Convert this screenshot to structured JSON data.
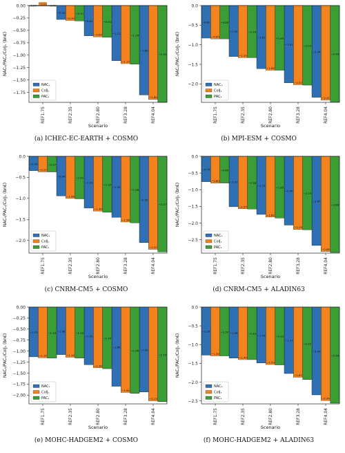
{
  "colors": {
    "nac": "#2f6fb3",
    "col": "#f2831e",
    "pac": "#3a9d35"
  },
  "chart_data": [
    {
      "type": "bar",
      "caption": "(a) ICHEC-EC-EARTH + COSMO",
      "categories": [
        "REF1.75",
        "REF2.35",
        "REF2.80",
        "REF3.28",
        "REF4.04"
      ],
      "xlabel": "Scenario",
      "ylabel": "NACₛ/PACₛ/CoIJₛ (bn€)",
      "ylim": [
        -1.95,
        0.0
      ],
      "yticks": [
        0.0,
        -0.25,
        -0.5,
        -0.75,
        -1.0,
        -1.25,
        -1.5,
        -1.75
      ],
      "ytick_labels": [
        "0.00",
        "−0.25",
        "−0.50",
        "−0.75",
        "−1.00",
        "−1.25",
        "−1.50",
        "−1.75"
      ],
      "legend": "bottom-left",
      "legend_labels": [
        "NACₛ",
        "CoIJₛ",
        "PACₛ"
      ],
      "series": [
        {
          "key": "nac",
          "values": [
            -0.0,
            -0.28,
            -0.61,
            -1.11,
            -1.8
          ],
          "labels": [
            "0.00",
            "−0.28",
            "−0.61",
            "−1.11",
            "−1.80"
          ]
        },
        {
          "key": "col",
          "values": [
            -0.01,
            -0.3,
            -0.63,
            -1.17,
            -1.89
          ],
          "labels": [
            "−0.01",
            "−0.30",
            "−0.63",
            "−1.17",
            "−1.89"
          ]
        },
        {
          "key": "pac",
          "values": [
            -0.01,
            -0.31,
            -0.64,
            -1.18,
            -1.95
          ],
          "labels": [
            "−0.01",
            "−0.31",
            "−0.64",
            "−1.18",
            "−1.95"
          ]
        }
      ]
    },
    {
      "type": "bar",
      "caption": "(b) MPI-ESM + COSMO",
      "categories": [
        "REF1.75",
        "REF2.35",
        "REF2.80",
        "REF3.28",
        "REF4.04"
      ],
      "xlabel": "Scenario",
      "ylabel": "NACₛ/PACₛ/CoIJₛ (bn€)",
      "ylim": [
        -2.47,
        0.0
      ],
      "yticks": [
        0.0,
        -0.5,
        -1.0,
        -1.5,
        -2.0
      ],
      "ytick_labels": [
        "0.0",
        "−0.5",
        "−1.0",
        "−1.5",
        "−2.0"
      ],
      "legend": "bottom-left",
      "legend_labels": [
        "NACₛ",
        "CoIJₛ",
        "PACₛ"
      ],
      "series": [
        {
          "key": "nac",
          "values": [
            -0.83,
            -1.3,
            -1.61,
            -1.97,
            -2.34
          ],
          "labels": [
            "−0.83",
            "−1.30",
            "−1.61",
            "−1.97",
            "−2.34"
          ]
        },
        {
          "key": "col",
          "values": [
            -0.85,
            -1.33,
            -1.65,
            -2.02,
            -2.41
          ],
          "labels": [
            "−0.85",
            "−1.33",
            "−1.65",
            "−2.02",
            "−2.41"
          ]
        },
        {
          "key": "pac",
          "values": [
            -0.85,
            -1.33,
            -1.65,
            -2.03,
            -2.46
          ],
          "labels": [
            "−0.85",
            "−1.33",
            "−1.65",
            "−2.03",
            "−2.46"
          ]
        }
      ]
    },
    {
      "type": "bar",
      "caption": "(c) CNRM-CM5 + COSMO",
      "categories": [
        "REF1.75",
        "REF2.35",
        "REF2.80",
        "REF3.28",
        "REF4.04"
      ],
      "xlabel": "Scenario",
      "ylabel": "NACₛ/PACₛ/CoIJₛ (bn€)",
      "ylim": [
        -2.3,
        0.0
      ],
      "yticks": [
        0.0,
        -0.5,
        -1.0,
        -1.5,
        -2.0
      ],
      "ytick_labels": [
        "0.0",
        "−0.5",
        "−1.0",
        "−1.5",
        "−2.0"
      ],
      "legend": "bottom-left",
      "legend_labels": [
        "NACₛ",
        "CoIJₛ",
        "PACₛ"
      ],
      "series": [
        {
          "key": "nac",
          "values": [
            -0.34,
            -0.94,
            -1.23,
            -1.45,
            -2.05
          ],
          "labels": [
            "−0.34",
            "−0.94",
            "−1.23",
            "−1.45",
            "−2.05"
          ]
        },
        {
          "key": "col",
          "values": [
            -0.37,
            -1.0,
            -1.3,
            -1.56,
            -2.21
          ],
          "labels": [
            "−0.37",
            "−1.00",
            "−1.30",
            "−1.56",
            "−2.21"
          ]
        },
        {
          "key": "pac",
          "values": [
            -0.37,
            -1.01,
            -1.33,
            -1.58,
            -2.27
          ],
          "labels": [
            "−0.37",
            "−1.01",
            "−1.33",
            "−1.58",
            "−2.27"
          ]
        }
      ]
    },
    {
      "type": "bar",
      "caption": "(d) CNRM-CM5 + ALADIN63",
      "categories": [
        "REF1.75",
        "REF2.35",
        "REF2.80",
        "REF3.28",
        "REF4.04"
      ],
      "xlabel": "Scenario",
      "ylabel": "NACₛ/PACₛ/CoIJₛ (bn€)",
      "ylim": [
        -2.9,
        0.0
      ],
      "yticks": [
        0.0,
        -0.5,
        -1.0,
        -1.5,
        -2.0,
        -2.5
      ],
      "ytick_labels": [
        "0.0",
        "−0.5",
        "−1.0",
        "−1.5",
        "−2.0",
        "−2.5"
      ],
      "legend": "bottom-left",
      "legend_labels": [
        "NACₛ",
        "CoIJₛ",
        "PACₛ"
      ],
      "series": [
        {
          "key": "nac",
          "values": [
            -0.76,
            -1.51,
            -1.74,
            -2.06,
            -2.67
          ],
          "labels": [
            "−0.76",
            "−1.51",
            "−1.74",
            "−2.06",
            "−2.67"
          ]
        },
        {
          "key": "col",
          "values": [
            -0.8,
            -1.57,
            -1.82,
            -2.19,
            -2.85
          ],
          "labels": [
            "−0.80",
            "−1.57",
            "−1.82",
            "−2.19",
            "−2.85"
          ]
        },
        {
          "key": "pac",
          "values": [
            -0.8,
            -1.58,
            -1.85,
            -2.2,
            -2.88
          ],
          "labels": [
            "−0.80",
            "−1.58",
            "−1.85",
            "−2.20",
            "−2.88"
          ]
        }
      ]
    },
    {
      "type": "bar",
      "caption": "(e) MOHC-HADGEM2 + COSMO",
      "categories": [
        "REF1.75",
        "REF2.35",
        "REF2.80",
        "REF3.28",
        "REF4.04"
      ],
      "xlabel": "Scenario",
      "ylabel": "NACₛ/PACₛ/CoIJₛ (bn€)",
      "ylim": [
        -2.2,
        0.0
      ],
      "yticks": [
        0.0,
        -0.25,
        -0.5,
        -0.75,
        -1.0,
        -1.25,
        -1.5,
        -1.75,
        -2.0
      ],
      "ytick_labels": [
        "0.00",
        "−0.25",
        "−0.50",
        "−0.75",
        "−1.00",
        "−1.25",
        "−1.50",
        "−1.75",
        "−2.00"
      ],
      "legend": "bottom-left",
      "legend_labels": [
        "NACₛ",
        "CoIJₛ",
        "PACₛ"
      ],
      "series": [
        {
          "key": "nac",
          "values": [
            -1.13,
            -1.08,
            -1.31,
            -1.8,
            -1.93
          ],
          "labels": [
            "−1.13",
            "−1.08",
            "−1.31",
            "−1.80",
            "−1.93"
          ]
        },
        {
          "key": "col",
          "values": [
            -1.15,
            -1.14,
            -1.38,
            -1.94,
            -2.13
          ],
          "labels": [
            "−1.15",
            "−1.14",
            "−1.38",
            "−1.94",
            "−2.13"
          ]
        },
        {
          "key": "pac",
          "values": [
            -1.16,
            -1.16,
            -1.4,
            -1.96,
            -2.15
          ],
          "labels": [
            "−1.16",
            "−1.16",
            "−1.40",
            "−1.96",
            "−2.15"
          ]
        }
      ]
    },
    {
      "type": "bar",
      "caption": "(f) MOHC-HADGEM2 + ALADIN63",
      "categories": [
        "REF1.75",
        "REF2.35",
        "REF2.80",
        "REF3.28",
        "REF4.04"
      ],
      "xlabel": "Scenario",
      "ylabel": "NACₛ/PACₛ/CoIJₛ (bn€)",
      "ylim": [
        -2.58,
        0.0
      ],
      "yticks": [
        0.0,
        -0.5,
        -1.0,
        -1.5,
        -2.0,
        -2.5
      ],
      "ytick_labels": [
        "0.0",
        "−0.5",
        "−1.0",
        "−1.5",
        "−2.0",
        "−2.5"
      ],
      "legend": "bottom-left",
      "legend_labels": [
        "NACₛ",
        "CoIJₛ",
        "PACₛ"
      ],
      "series": [
        {
          "key": "nac",
          "values": [
            -1.28,
            -1.36,
            -1.49,
            -1.77,
            -2.34
          ],
          "labels": [
            "−1.28",
            "−1.36",
            "−1.49",
            "−1.77",
            "−2.34"
          ]
        },
        {
          "key": "col",
          "values": [
            -1.3,
            -1.4,
            -1.53,
            -1.87,
            -2.49
          ],
          "labels": [
            "−1.30",
            "−1.40",
            "−1.53",
            "−1.87",
            "−2.49"
          ]
        },
        {
          "key": "pac",
          "values": [
            -1.3,
            -1.4,
            -1.54,
            -1.93,
            -2.56
          ],
          "labels": [
            "−1.30",
            "−1.40",
            "−1.54",
            "−1.93",
            "−2.56"
          ]
        }
      ]
    }
  ]
}
